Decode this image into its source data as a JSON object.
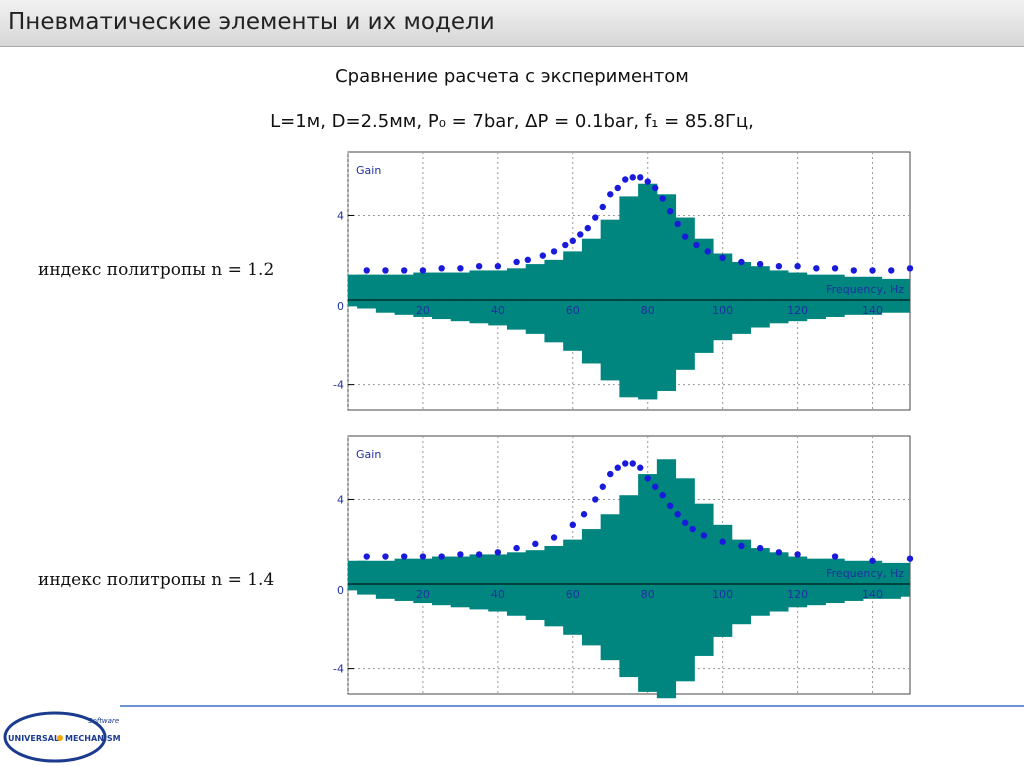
{
  "header": {
    "title": "Пневматические элементы и их модели"
  },
  "subtitle": "Сравнение расчета с экспериментом",
  "params": "L=1м, D=2.5мм, P₀ = 7bar, ΔP = 0.1bar, f₁ = 85.8Гц,",
  "labels": [
    "индекс политропы n = 1.2",
    "индекс политропы n = 1.4"
  ],
  "logo": {
    "small": "Software",
    "left": "UNIVERSAL",
    "right": "MECHANISM"
  },
  "chart_data": [
    {
      "type": "scatter",
      "y_label": "Gain",
      "x_label": "Frequency, Hz",
      "color": "#1a1adb",
      "band_color": "#00857f",
      "grid": true,
      "xlim": [
        0,
        150
      ],
      "ylim": [
        -5.2,
        7
      ],
      "xticks": [
        0,
        20,
        40,
        60,
        80,
        100,
        120,
        140
      ],
      "yticks": [
        -4,
        0,
        4
      ],
      "band": {
        "x": [
          0,
          5,
          10,
          15,
          20,
          25,
          30,
          35,
          40,
          45,
          50,
          55,
          60,
          65,
          70,
          75,
          80,
          85,
          90,
          95,
          100,
          105,
          110,
          115,
          120,
          125,
          130,
          135,
          140,
          145,
          150
        ],
        "upper": [
          1.2,
          1.2,
          1.2,
          1.2,
          1.3,
          1.3,
          1.3,
          1.4,
          1.4,
          1.5,
          1.7,
          1.9,
          2.3,
          2.9,
          3.8,
          4.9,
          5.5,
          5.0,
          3.9,
          2.9,
          2.2,
          1.8,
          1.6,
          1.4,
          1.3,
          1.2,
          1.2,
          1.1,
          1.1,
          1.0,
          1.0
        ],
        "lower": [
          -0.3,
          -0.4,
          -0.6,
          -0.7,
          -0.8,
          -0.9,
          -1.0,
          -1.1,
          -1.2,
          -1.4,
          -1.6,
          -2.0,
          -2.4,
          -3.0,
          -3.8,
          -4.6,
          -4.7,
          -4.3,
          -3.3,
          -2.5,
          -1.9,
          -1.6,
          -1.3,
          -1.1,
          -1.0,
          -0.9,
          -0.8,
          -0.7,
          -0.7,
          -0.6,
          -0.6
        ]
      },
      "x": [
        5,
        10,
        15,
        20,
        25,
        30,
        35,
        40,
        45,
        48,
        52,
        55,
        58,
        60,
        62,
        64,
        66,
        68,
        70,
        72,
        74,
        76,
        78,
        80,
        82,
        84,
        86,
        88,
        90,
        93,
        96,
        100,
        105,
        110,
        115,
        120,
        125,
        130,
        135,
        140,
        145,
        150
      ],
      "values": [
        1.4,
        1.4,
        1.4,
        1.4,
        1.5,
        1.5,
        1.6,
        1.6,
        1.8,
        1.9,
        2.1,
        2.3,
        2.6,
        2.8,
        3.1,
        3.4,
        3.9,
        4.4,
        5.0,
        5.3,
        5.7,
        5.8,
        5.8,
        5.6,
        5.3,
        4.8,
        4.2,
        3.6,
        3.0,
        2.6,
        2.3,
        2.0,
        1.8,
        1.7,
        1.6,
        1.6,
        1.5,
        1.5,
        1.4,
        1.4,
        1.4,
        1.5
      ]
    },
    {
      "type": "scatter",
      "y_label": "Gain",
      "x_label": "Frequency, Hz",
      "color": "#1a1adb",
      "band_color": "#00857f",
      "grid": true,
      "xlim": [
        0,
        150
      ],
      "ylim": [
        -5.2,
        7
      ],
      "xticks": [
        0,
        20,
        40,
        60,
        80,
        100,
        120,
        140
      ],
      "yticks": [
        -4,
        0,
        4
      ],
      "band": {
        "x": [
          0,
          5,
          10,
          15,
          20,
          25,
          30,
          35,
          40,
          45,
          50,
          55,
          60,
          65,
          70,
          75,
          80,
          85,
          90,
          95,
          100,
          105,
          110,
          115,
          120,
          125,
          130,
          135,
          140,
          145,
          150
        ],
        "upper": [
          1.1,
          1.1,
          1.1,
          1.2,
          1.2,
          1.3,
          1.3,
          1.4,
          1.4,
          1.5,
          1.6,
          1.8,
          2.1,
          2.6,
          3.3,
          4.2,
          5.2,
          5.9,
          5.0,
          3.8,
          2.8,
          2.1,
          1.7,
          1.5,
          1.3,
          1.2,
          1.2,
          1.1,
          1.1,
          1.0,
          1.0
        ],
        "lower": [
          -0.3,
          -0.5,
          -0.7,
          -0.8,
          -0.9,
          -1.0,
          -1.1,
          -1.2,
          -1.3,
          -1.5,
          -1.7,
          -2.0,
          -2.4,
          -2.9,
          -3.6,
          -4.4,
          -5.1,
          -5.4,
          -4.6,
          -3.4,
          -2.5,
          -1.9,
          -1.5,
          -1.3,
          -1.1,
          -1.0,
          -0.9,
          -0.8,
          -0.7,
          -0.7,
          -0.6
        ]
      },
      "x": [
        5,
        10,
        15,
        20,
        25,
        30,
        35,
        40,
        45,
        50,
        55,
        60,
        63,
        66,
        68,
        70,
        72,
        74,
        76,
        78,
        80,
        82,
        84,
        86,
        88,
        90,
        92,
        95,
        100,
        105,
        110,
        115,
        120,
        130,
        140,
        150
      ],
      "values": [
        1.3,
        1.3,
        1.3,
        1.3,
        1.3,
        1.4,
        1.4,
        1.5,
        1.7,
        1.9,
        2.2,
        2.8,
        3.3,
        4.0,
        4.6,
        5.2,
        5.5,
        5.7,
        5.7,
        5.5,
        5.0,
        4.6,
        4.2,
        3.7,
        3.3,
        2.9,
        2.6,
        2.3,
        2.0,
        1.8,
        1.7,
        1.5,
        1.4,
        1.3,
        1.1,
        1.2
      ]
    }
  ]
}
